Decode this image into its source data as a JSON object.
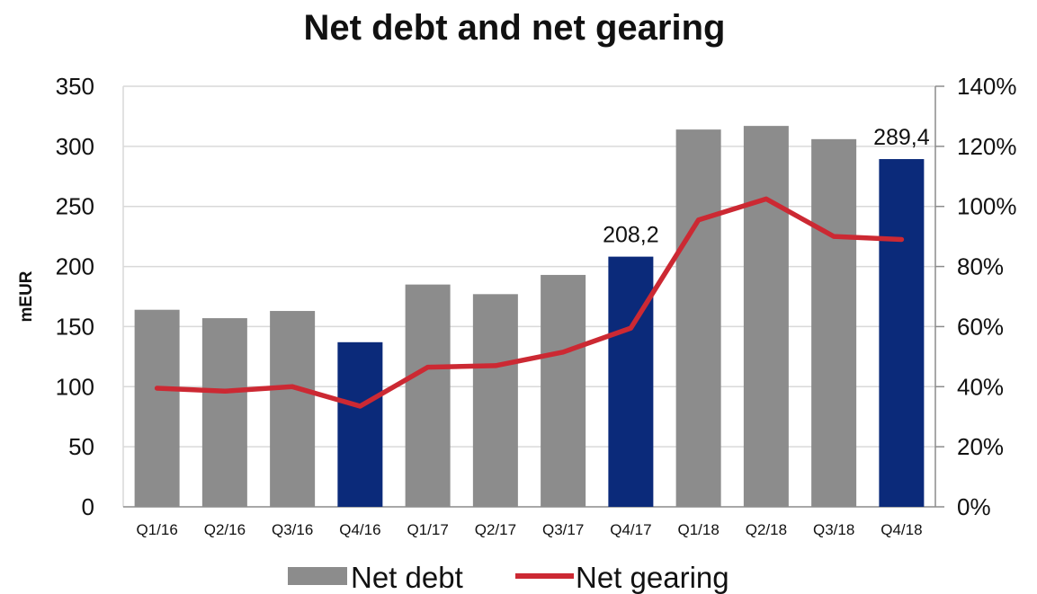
{
  "chart_data": {
    "type": "bar",
    "title": "Net debt and net gearing",
    "ylabel": "mEUR",
    "y2label": "",
    "categories": [
      "Q1/16",
      "Q2/16",
      "Q3/16",
      "Q4/16",
      "Q1/17",
      "Q2/17",
      "Q3/17",
      "Q4/17",
      "Q1/18",
      "Q2/18",
      "Q3/18",
      "Q4/18"
    ],
    "ylim": [
      0,
      350
    ],
    "yticks": [
      "0",
      "50",
      "100",
      "150",
      "200",
      "250",
      "300",
      "350"
    ],
    "y2lim": [
      0,
      140
    ],
    "y2ticks": [
      "0%",
      "20%",
      "40%",
      "60%",
      "80%",
      "100%",
      "120%",
      "140%"
    ],
    "grid": true,
    "legend_position": "bottom",
    "series": [
      {
        "name": "Net debt",
        "type": "bar",
        "axis": "left",
        "values": [
          164,
          157,
          163,
          137,
          185,
          177,
          193,
          208.2,
          314,
          317,
          306,
          289.4
        ],
        "colors": [
          "#8c8c8c",
          "#8c8c8c",
          "#8c8c8c",
          "#0b2a7a",
          "#8c8c8c",
          "#8c8c8c",
          "#8c8c8c",
          "#0b2a7a",
          "#8c8c8c",
          "#8c8c8c",
          "#8c8c8c",
          "#0b2a7a"
        ],
        "data_labels": [
          "",
          "",
          "",
          "",
          "",
          "",
          "",
          "208,2",
          "",
          "",
          "",
          "289,4"
        ]
      },
      {
        "name": "Net gearing",
        "type": "line",
        "axis": "right",
        "values": [
          39.5,
          38.5,
          40,
          33.5,
          46.5,
          47,
          51.5,
          59.5,
          95.5,
          102.5,
          90,
          89
        ],
        "color": "#cc2933"
      }
    ]
  }
}
